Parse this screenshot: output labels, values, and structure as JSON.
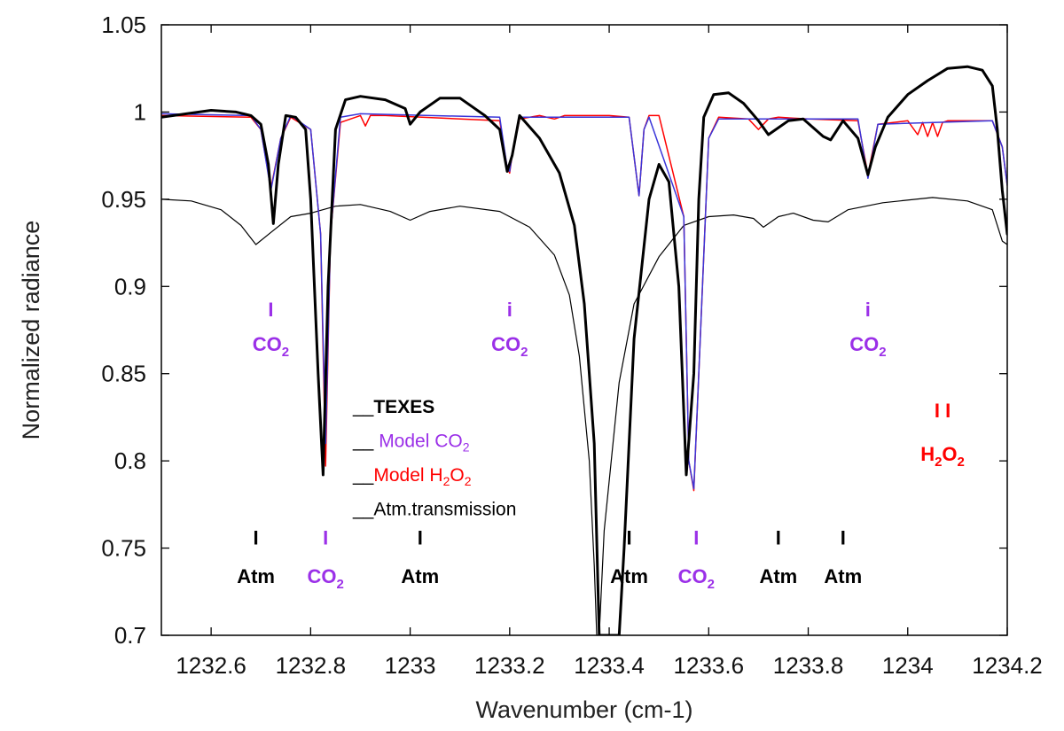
{
  "chart_data": {
    "type": "line",
    "xlabel": "Wavenumber (cm-1)",
    "ylabel": "Normalized radiance",
    "xlim": [
      1232.5,
      1234.2
    ],
    "ylim": [
      0.7,
      1.05
    ],
    "x_ticks": [
      1232.6,
      1232.8,
      1233.0,
      1233.2,
      1233.4,
      1233.6,
      1233.8,
      1234.0,
      1234.2
    ],
    "x_tick_labels": [
      "1232.6",
      "1232.8",
      "1233",
      "1233.2",
      "1233.4",
      "1233.6",
      "1233.8",
      "1234",
      "1234.2"
    ],
    "y_ticks": [
      0.7,
      0.75,
      0.8,
      0.85,
      0.9,
      0.95,
      1.0,
      1.05
    ],
    "y_tick_labels": [
      "0.7",
      "0.75",
      "0.8",
      "0.85",
      "0.9",
      "0.95",
      "1",
      "1.05"
    ],
    "series": [
      {
        "name": "Atm.transmission",
        "color": "#000000",
        "width": 1.2,
        "x": [
          1232.5,
          1232.56,
          1232.62,
          1232.66,
          1232.69,
          1232.72,
          1232.76,
          1232.8,
          1232.85,
          1232.9,
          1232.96,
          1233.0,
          1233.04,
          1233.1,
          1233.18,
          1233.24,
          1233.29,
          1233.32,
          1233.34,
          1233.36,
          1233.37,
          1233.375,
          1233.38,
          1233.39,
          1233.42,
          1233.45,
          1233.5,
          1233.55,
          1233.6,
          1233.65,
          1233.69,
          1233.71,
          1233.74,
          1233.77,
          1233.81,
          1233.84,
          1233.88,
          1233.95,
          1234.05,
          1234.12,
          1234.17,
          1234.19,
          1234.2
        ],
        "y": [
          0.95,
          0.949,
          0.944,
          0.935,
          0.924,
          0.931,
          0.94,
          0.942,
          0.946,
          0.947,
          0.943,
          0.938,
          0.943,
          0.946,
          0.943,
          0.934,
          0.918,
          0.895,
          0.86,
          0.8,
          0.74,
          0.7,
          0.7,
          0.76,
          0.845,
          0.89,
          0.917,
          0.935,
          0.94,
          0.941,
          0.939,
          0.934,
          0.94,
          0.942,
          0.938,
          0.937,
          0.944,
          0.948,
          0.951,
          0.949,
          0.944,
          0.926,
          0.924
        ]
      },
      {
        "name": "Model H2O2",
        "color": "#ff0000",
        "width": 1.5,
        "x": [
          1232.5,
          1232.68,
          1232.7,
          1232.72,
          1232.74,
          1232.76,
          1232.8,
          1232.82,
          1232.83,
          1232.84,
          1232.86,
          1232.88,
          1232.9,
          1232.91,
          1232.92,
          1232.95,
          1233.18,
          1233.195,
          1233.2,
          1233.205,
          1233.22,
          1233.26,
          1233.29,
          1233.31,
          1233.4,
          1233.44,
          1233.46,
          1233.47,
          1233.48,
          1233.5,
          1233.55,
          1233.56,
          1233.57,
          1233.58,
          1233.6,
          1233.62,
          1233.68,
          1233.7,
          1233.72,
          1233.74,
          1233.8,
          1233.9,
          1233.92,
          1233.94,
          1234.0,
          1234.02,
          1234.03,
          1234.04,
          1234.05,
          1234.06,
          1234.07,
          1234.08,
          1234.17,
          1234.19,
          1234.2
        ],
        "y": [
          0.998,
          0.997,
          0.99,
          0.956,
          0.985,
          0.997,
          0.99,
          0.93,
          0.797,
          0.93,
          0.994,
          0.996,
          0.998,
          0.992,
          0.998,
          0.998,
          0.995,
          0.968,
          0.965,
          0.975,
          0.996,
          0.998,
          0.996,
          0.998,
          0.998,
          0.997,
          0.952,
          0.99,
          0.998,
          0.998,
          0.94,
          0.8,
          0.783,
          0.85,
          0.985,
          0.997,
          0.996,
          0.99,
          0.996,
          0.997,
          0.996,
          0.995,
          0.964,
          0.993,
          0.995,
          0.987,
          0.994,
          0.986,
          0.994,
          0.986,
          0.994,
          0.995,
          0.995,
          0.98,
          0.958
        ]
      },
      {
        "name": "Model CO2",
        "color": "#3a35d9",
        "width": 1.5,
        "x": [
          1232.5,
          1232.68,
          1232.7,
          1232.72,
          1232.74,
          1232.76,
          1232.8,
          1232.82,
          1232.83,
          1232.84,
          1232.86,
          1232.9,
          1233.18,
          1233.195,
          1233.2,
          1233.205,
          1233.22,
          1233.44,
          1233.46,
          1233.47,
          1233.48,
          1233.55,
          1233.56,
          1233.57,
          1233.58,
          1233.6,
          1233.62,
          1233.9,
          1233.92,
          1233.94,
          1234.17,
          1234.19,
          1234.2
        ],
        "y": [
          0.999,
          0.998,
          0.99,
          0.955,
          0.985,
          0.998,
          0.99,
          0.93,
          0.81,
          0.93,
          0.997,
          0.999,
          0.997,
          0.968,
          0.966,
          0.975,
          0.997,
          0.997,
          0.952,
          0.99,
          0.997,
          0.94,
          0.8,
          0.784,
          0.85,
          0.985,
          0.996,
          0.996,
          0.962,
          0.993,
          0.995,
          0.98,
          0.958
        ]
      },
      {
        "name": "TEXES",
        "color": "#000000",
        "width": 3,
        "x": [
          1232.5,
          1232.55,
          1232.6,
          1232.65,
          1232.68,
          1232.7,
          1232.715,
          1232.725,
          1232.735,
          1232.75,
          1232.77,
          1232.79,
          1232.8,
          1232.815,
          1232.825,
          1232.835,
          1232.85,
          1232.87,
          1232.9,
          1232.95,
          1232.99,
          1233.0,
          1233.02,
          1233.06,
          1233.1,
          1233.15,
          1233.18,
          1233.195,
          1233.205,
          1233.22,
          1233.26,
          1233.3,
          1233.33,
          1233.35,
          1233.37,
          1233.38,
          1233.42,
          1233.43,
          1233.45,
          1233.48,
          1233.5,
          1233.52,
          1233.54,
          1233.555,
          1233.57,
          1233.58,
          1233.59,
          1233.61,
          1233.64,
          1233.67,
          1233.7,
          1233.72,
          1233.76,
          1233.79,
          1233.83,
          1233.845,
          1233.87,
          1233.9,
          1233.92,
          1233.935,
          1233.96,
          1234.0,
          1234.04,
          1234.08,
          1234.12,
          1234.15,
          1234.17,
          1234.18,
          1234.19,
          1234.2
        ],
        "y": [
          0.997,
          0.999,
          1.001,
          1.0,
          0.998,
          0.993,
          0.97,
          0.936,
          0.97,
          0.998,
          0.997,
          0.99,
          0.95,
          0.85,
          0.792,
          0.9,
          0.99,
          1.007,
          1.009,
          1.007,
          1.002,
          0.993,
          1.0,
          1.008,
          1.008,
          0.998,
          0.99,
          0.966,
          0.975,
          0.998,
          0.985,
          0.965,
          0.935,
          0.89,
          0.81,
          0.7,
          0.7,
          0.75,
          0.87,
          0.95,
          0.97,
          0.96,
          0.9,
          0.792,
          0.85,
          0.95,
          0.997,
          1.01,
          1.011,
          1.005,
          0.995,
          0.987,
          0.995,
          0.996,
          0.986,
          0.984,
          0.995,
          0.985,
          0.964,
          0.98,
          0.997,
          1.01,
          1.018,
          1.025,
          1.026,
          1.024,
          1.015,
          0.99,
          0.955,
          0.93
        ]
      }
    ]
  },
  "annotations": {
    "mid_co2": [
      {
        "mark": "I",
        "label_main": "CO",
        "label_sub": "2",
        "x": 1232.72,
        "mark_y": 0.883,
        "label_y": 0.863
      },
      {
        "mark": "i",
        "label_main": "CO",
        "label_sub": "2",
        "x": 1233.2,
        "mark_y": 0.883,
        "label_y": 0.863
      },
      {
        "mark": "i",
        "label_main": "CO",
        "label_sub": "2",
        "x": 1233.92,
        "mark_y": 0.883,
        "label_y": 0.863
      }
    ],
    "h2o2": {
      "mark": "I  I",
      "label_main": "H",
      "label_sub1": "2",
      "label_mid": "O",
      "label_sub2": "2",
      "x": 1234.07,
      "mark_y": 0.825,
      "label_y": 0.8
    },
    "bottom": [
      {
        "kind": "Atm",
        "mark": "I",
        "label_main": "Atm",
        "label_sub": "",
        "x": 1232.69
      },
      {
        "kind": "CO2",
        "mark": "I",
        "label_main": "CO",
        "label_sub": "2",
        "x": 1232.83
      },
      {
        "kind": "Atm",
        "mark": "I",
        "label_main": "Atm",
        "label_sub": "",
        "x": 1233.02
      },
      {
        "kind": "Atm",
        "mark": "I",
        "label_main": "Atm",
        "label_sub": "",
        "x": 1233.44
      },
      {
        "kind": "CO2",
        "mark": "I",
        "label_main": "CO",
        "label_sub": "2",
        "x": 1233.575
      },
      {
        "kind": "Atm",
        "mark": "I",
        "label_main": "Atm",
        "label_sub": "",
        "x": 1233.74
      },
      {
        "kind": "Atm",
        "mark": "I",
        "label_main": "Atm",
        "label_sub": "",
        "x": 1233.87
      }
    ],
    "bottom_mark_y": 0.752,
    "bottom_label_y": 0.73
  },
  "legend": [
    {
      "line": "__",
      "text": "TEXES",
      "sub": "",
      "color": "#000000",
      "bold": true
    },
    {
      "line": "__",
      "text": " Model CO",
      "sub": "2",
      "color": "#9b30e8",
      "bold": false
    },
    {
      "line": "__",
      "text": "Model H",
      "sub": "2",
      "text2": "O",
      "sub2": "2",
      "color": "#ff0000",
      "bold": false
    },
    {
      "line": "__",
      "text": "Atm.transmission",
      "sub": "",
      "color": "#000000",
      "bold": false
    }
  ],
  "colors": {
    "co2_label": "#9b30e8",
    "h2o2_label": "#ff0000",
    "atm_label": "#000000"
  }
}
